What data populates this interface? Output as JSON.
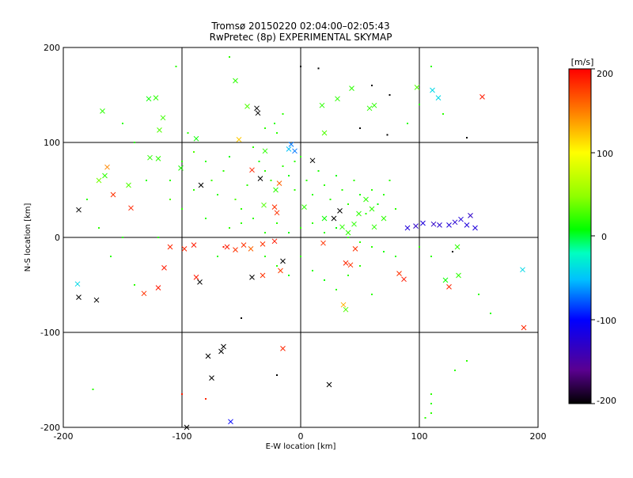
{
  "chart_data": {
    "type": "scatter",
    "title": "Tromsø 20150220 02:04:00–02:05:43",
    "subtitle": "RwPretec (8p) EXPERIMENTAL SKYMAP",
    "xlabel": "E-W location [km]",
    "ylabel": "N-S location [km]",
    "xlim": [
      -200,
      200
    ],
    "ylim": [
      -200,
      200
    ],
    "x_ticks": [
      -200,
      -100,
      0,
      100,
      200
    ],
    "y_ticks": [
      -200,
      -100,
      0,
      100,
      200
    ],
    "x_tick_labels": [
      "-200",
      "-100",
      "0",
      "100",
      "200"
    ],
    "y_tick_labels": [
      "-200",
      "-100",
      "0",
      "100",
      "200"
    ],
    "grid": "lines at ±100 and 0 on both axes",
    "colorbar": {
      "unit_label": "[m/s]",
      "range": [
        -200,
        200
      ],
      "tick_values": [
        200,
        100,
        0,
        -100,
        -200
      ],
      "tick_labels": [
        "200",
        "100",
        "0",
        "-100",
        "-200"
      ],
      "colormap": "rainbow: black (-200) → purple → blue → cyan → green (0) → yellow → orange → red (200)"
    },
    "series": [
      {
        "marker": "x",
        "points": [
          [
            -167,
            133,
            20
          ],
          [
            -163,
            74,
            145
          ],
          [
            -158,
            45,
            180
          ],
          [
            -143,
            31,
            185
          ],
          [
            -145,
            55,
            30
          ],
          [
            -128,
            146,
            10
          ],
          [
            -122,
            147,
            20
          ],
          [
            -119,
            113,
            30
          ],
          [
            -116,
            126,
            25
          ],
          [
            -127,
            84,
            20
          ],
          [
            -120,
            83,
            20
          ],
          [
            -101,
            73,
            15
          ],
          [
            -187,
            29,
            -200
          ],
          [
            -170,
            60,
            40
          ],
          [
            -165,
            65,
            20
          ],
          [
            -187,
            -63,
            -200
          ],
          [
            -172,
            -66,
            -200
          ],
          [
            -188,
            -49,
            -40
          ],
          [
            -132,
            -59,
            180
          ],
          [
            -120,
            -53,
            190
          ],
          [
            -115,
            -32,
            190
          ],
          [
            -110,
            -10,
            185
          ],
          [
            -98,
            -12,
            185
          ],
          [
            -90,
            -8,
            190
          ],
          [
            -84,
            55,
            -200
          ],
          [
            -88,
            -42,
            190
          ],
          [
            -85,
            -47,
            -200
          ],
          [
            -62,
            -10,
            190
          ],
          [
            -55,
            -13,
            180
          ],
          [
            -48,
            -8,
            180
          ],
          [
            -42,
            -12,
            160
          ],
          [
            -41,
            -42,
            -200
          ],
          [
            -32,
            -7,
            180
          ],
          [
            -22,
            -4,
            190
          ],
          [
            -15,
            -25,
            -200
          ],
          [
            -32,
            -40,
            180
          ],
          [
            -17,
            -35,
            175
          ],
          [
            -37,
            136,
            -200
          ],
          [
            -36,
            131,
            -200
          ],
          [
            -34,
            62,
            -200
          ],
          [
            -31,
            34,
            30
          ],
          [
            -41,
            71,
            185
          ],
          [
            -18,
            57,
            160
          ],
          [
            -22,
            32,
            180
          ],
          [
            -21,
            50,
            20
          ],
          [
            -20,
            26,
            180
          ],
          [
            10,
            81,
            -200
          ],
          [
            19,
            -6,
            180
          ],
          [
            28,
            20,
            -200
          ],
          [
            33,
            28,
            -200
          ],
          [
            38,
            -27,
            185
          ],
          [
            42,
            -29,
            180
          ],
          [
            46,
            -12,
            180
          ],
          [
            36,
            -71,
            130
          ],
          [
            38,
            -76,
            30
          ],
          [
            35,
            11,
            20
          ],
          [
            40,
            5,
            20
          ],
          [
            45,
            14,
            20
          ],
          [
            49,
            25,
            20
          ],
          [
            62,
            11,
            20
          ],
          [
            83,
            -38,
            180
          ],
          [
            87,
            -44,
            190
          ],
          [
            90,
            10,
            -120
          ],
          [
            97,
            12,
            -130
          ],
          [
            103,
            15,
            -120
          ],
          [
            112,
            14,
            -130
          ],
          [
            117,
            13,
            -125
          ],
          [
            125,
            13,
            -120
          ],
          [
            130,
            16,
            -125
          ],
          [
            135,
            19,
            -120
          ],
          [
            140,
            13,
            -120
          ],
          [
            143,
            23,
            -130
          ],
          [
            147,
            10,
            -120
          ],
          [
            153,
            148,
            190
          ],
          [
            125,
            -52,
            185
          ],
          [
            188,
            -95,
            185
          ],
          [
            187,
            -34,
            -40
          ],
          [
            24,
            -155,
            -200
          ],
          [
            -65,
            -115,
            -200
          ],
          [
            -67,
            -120,
            -200
          ],
          [
            -78,
            -125,
            -200
          ],
          [
            -75,
            -148,
            -200
          ],
          [
            -59,
            -194,
            -100
          ],
          [
            -96,
            -200,
            -200
          ],
          [
            -15,
            -117,
            185
          ],
          [
            3,
            32,
            20
          ],
          [
            20,
            20,
            10
          ],
          [
            60,
            30,
            20
          ],
          [
            70,
            20,
            20
          ],
          [
            55,
            40,
            20
          ],
          [
            -55,
            165,
            20
          ],
          [
            -45,
            138,
            30
          ],
          [
            18,
            139,
            20
          ],
          [
            31,
            146,
            20
          ],
          [
            43,
            157,
            20
          ],
          [
            58,
            136,
            20
          ],
          [
            62,
            139,
            20
          ],
          [
            98,
            158,
            30
          ],
          [
            111,
            155,
            -40
          ],
          [
            116,
            147,
            -40
          ],
          [
            132,
            -10,
            20
          ],
          [
            122,
            -45,
            10
          ],
          [
            133,
            -40,
            20
          ],
          [
            -8,
            98,
            -70
          ],
          [
            -5,
            91,
            -70
          ],
          [
            -88,
            104,
            10
          ],
          [
            -52,
            103,
            120
          ],
          [
            -30,
            91,
            20
          ],
          [
            -10,
            93,
            -50
          ],
          [
            20,
            110,
            30
          ]
        ]
      },
      {
        "marker": "dot",
        "points": [
          [
            -150,
            120,
            20
          ],
          [
            -140,
            100,
            20
          ],
          [
            -130,
            60,
            20
          ],
          [
            -110,
            40,
            30
          ],
          [
            -100,
            30,
            20
          ],
          [
            -95,
            110,
            20
          ],
          [
            -90,
            90,
            30
          ],
          [
            -80,
            80,
            20
          ],
          [
            -75,
            60,
            25
          ],
          [
            -70,
            45,
            20
          ],
          [
            -65,
            70,
            20
          ],
          [
            -60,
            85,
            10
          ],
          [
            -55,
            40,
            30
          ],
          [
            -50,
            30,
            20
          ],
          [
            -45,
            55,
            20
          ],
          [
            -40,
            95,
            20
          ],
          [
            -35,
            80,
            15
          ],
          [
            -30,
            70,
            20
          ],
          [
            -25,
            60,
            25
          ],
          [
            -20,
            110,
            20
          ],
          [
            -15,
            75,
            20
          ],
          [
            -10,
            65,
            10
          ],
          [
            -5,
            50,
            20
          ],
          [
            0,
            85,
            20
          ],
          [
            5,
            60,
            20
          ],
          [
            10,
            45,
            20
          ],
          [
            15,
            70,
            15
          ],
          [
            20,
            55,
            20
          ],
          [
            25,
            40,
            20
          ],
          [
            30,
            65,
            10
          ],
          [
            35,
            50,
            20
          ],
          [
            40,
            35,
            20
          ],
          [
            45,
            60,
            20
          ],
          [
            50,
            45,
            15
          ],
          [
            55,
            25,
            20
          ],
          [
            60,
            50,
            20
          ],
          [
            65,
            35,
            10
          ],
          [
            70,
            45,
            20
          ],
          [
            75,
            60,
            20
          ],
          [
            80,
            30,
            20
          ],
          [
            -60,
            10,
            20
          ],
          [
            -50,
            15,
            20
          ],
          [
            -40,
            20,
            20
          ],
          [
            -30,
            5,
            20
          ],
          [
            -20,
            15,
            20
          ],
          [
            -10,
            5,
            10
          ],
          [
            0,
            10,
            20
          ],
          [
            10,
            15,
            20
          ],
          [
            20,
            5,
            20
          ],
          [
            30,
            10,
            10
          ],
          [
            40,
            0,
            20
          ],
          [
            50,
            -5,
            20
          ],
          [
            60,
            -10,
            20
          ],
          [
            70,
            -15,
            15
          ],
          [
            80,
            -20,
            20
          ],
          [
            -30,
            -20,
            20
          ],
          [
            -20,
            -30,
            20
          ],
          [
            -10,
            -40,
            15
          ],
          [
            0,
            -20,
            20
          ],
          [
            10,
            -35,
            20
          ],
          [
            20,
            -45,
            10
          ],
          [
            30,
            -55,
            20
          ],
          [
            40,
            -40,
            20
          ],
          [
            50,
            -30,
            20
          ],
          [
            60,
            -60,
            20
          ],
          [
            -70,
            -20,
            20
          ],
          [
            -80,
            20,
            20
          ],
          [
            -90,
            50,
            20
          ],
          [
            -100,
            80,
            20
          ],
          [
            -110,
            60,
            20
          ],
          [
            -160,
            -20,
            20
          ],
          [
            -140,
            -50,
            20
          ],
          [
            -150,
            0,
            20
          ],
          [
            -170,
            10,
            20
          ],
          [
            -120,
            0,
            20
          ],
          [
            -180,
            40,
            20
          ],
          [
            -175,
            -160,
            20
          ],
          [
            -100,
            -165,
            190
          ],
          [
            -80,
            -170,
            185
          ],
          [
            -20,
            -145,
            -200
          ],
          [
            -50,
            -85,
            -200
          ],
          [
            -65,
            -10,
            190
          ],
          [
            15,
            178,
            -200
          ],
          [
            0,
            180,
            -200
          ],
          [
            -5,
            80,
            20
          ],
          [
            50,
            115,
            -200
          ],
          [
            73,
            108,
            -200
          ],
          [
            -105,
            180,
            20
          ],
          [
            -60,
            190,
            20
          ],
          [
            60,
            160,
            -200
          ],
          [
            75,
            150,
            -200
          ],
          [
            90,
            120,
            20
          ],
          [
            100,
            140,
            20
          ],
          [
            110,
            180,
            20
          ],
          [
            140,
            105,
            -200
          ],
          [
            120,
            130,
            20
          ],
          [
            128,
            -15,
            -200
          ],
          [
            110,
            -20,
            20
          ],
          [
            100,
            -10,
            20
          ],
          [
            140,
            -130,
            20
          ],
          [
            110,
            -165,
            20
          ],
          [
            110,
            -175,
            20
          ],
          [
            110,
            -185,
            20
          ],
          [
            105,
            -190,
            20
          ],
          [
            130,
            -140,
            20
          ],
          [
            160,
            -80,
            20
          ],
          [
            150,
            -60,
            20
          ],
          [
            -30,
            115,
            20
          ],
          [
            -22,
            120,
            20
          ],
          [
            -15,
            130,
            20
          ]
        ]
      }
    ]
  }
}
